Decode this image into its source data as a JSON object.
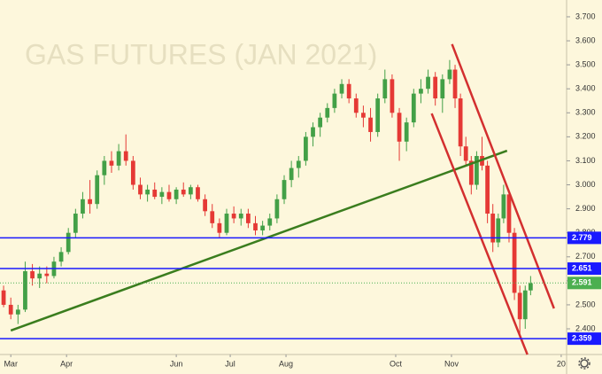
{
  "chart_data": {
    "type": "candlestick",
    "watermark": "GAS FUTURES (JAN 2021)",
    "x": [
      -4,
      0,
      4,
      8,
      12,
      16,
      20,
      24,
      28,
      32,
      36,
      40,
      44,
      48,
      52,
      56,
      60,
      64,
      68,
      72,
      76,
      80,
      84,
      88,
      92,
      96,
      100,
      104,
      108,
      112,
      116,
      120,
      124,
      128,
      132,
      136,
      140,
      144,
      148,
      152,
      156,
      160,
      164,
      168,
      172,
      176,
      180,
      184,
      188,
      192,
      196,
      200,
      204,
      208,
      212,
      216,
      220,
      224,
      228,
      232,
      236,
      240,
      244,
      247,
      250,
      253,
      256,
      259,
      262,
      265,
      268,
      271,
      274,
      277,
      280,
      283,
      286,
      289
    ],
    "open": [
      2.56,
      2.5,
      2.46,
      2.48,
      2.64,
      2.61,
      2.63,
      2.62,
      2.68,
      2.72,
      2.8,
      2.88,
      2.94,
      2.92,
      3.04,
      3.1,
      3.08,
      3.14,
      3.1,
      3.0,
      2.96,
      2.98,
      2.95,
      2.97,
      2.94,
      2.98,
      2.96,
      2.99,
      2.94,
      2.89,
      2.84,
      2.8,
      2.88,
      2.86,
      2.88,
      2.84,
      2.81,
      2.83,
      2.86,
      2.94,
      3.02,
      3.07,
      3.1,
      3.2,
      3.24,
      3.28,
      3.32,
      3.38,
      3.42,
      3.36,
      3.3,
      3.28,
      3.22,
      3.36,
      3.44,
      3.3,
      3.18,
      3.26,
      3.38,
      3.4,
      3.45,
      3.36,
      3.44,
      3.48,
      3.36,
      3.16,
      3.1,
      3.0,
      3.12,
      3.08,
      2.88,
      2.76,
      2.86,
      2.96,
      2.8,
      2.55,
      2.44,
      2.56
    ],
    "high": [
      2.58,
      2.53,
      2.5,
      2.68,
      2.67,
      2.66,
      2.66,
      2.7,
      2.74,
      2.82,
      2.9,
      2.97,
      3.02,
      3.06,
      3.12,
      3.14,
      3.17,
      3.21,
      3.12,
      3.03,
      3.0,
      3.01,
      2.99,
      3.0,
      2.99,
      3.01,
      3.0,
      3.0,
      2.96,
      2.92,
      2.86,
      2.9,
      2.91,
      2.9,
      2.9,
      2.87,
      2.85,
      2.88,
      2.96,
      3.04,
      3.1,
      3.12,
      3.22,
      3.26,
      3.3,
      3.34,
      3.4,
      3.44,
      3.44,
      3.38,
      3.33,
      3.32,
      3.38,
      3.48,
      3.46,
      3.32,
      3.28,
      3.4,
      3.44,
      3.48,
      3.47,
      3.46,
      3.52,
      3.5,
      3.38,
      3.2,
      3.12,
      3.14,
      3.2,
      3.1,
      2.92,
      2.88,
      3.0,
      2.98,
      2.82,
      2.58,
      2.58,
      2.62
    ],
    "low": [
      2.49,
      2.44,
      2.42,
      2.47,
      2.58,
      2.57,
      2.59,
      2.61,
      2.66,
      2.71,
      2.78,
      2.86,
      2.88,
      2.9,
      3.0,
      3.05,
      3.06,
      3.08,
      2.98,
      2.94,
      2.93,
      2.94,
      2.92,
      2.93,
      2.92,
      2.95,
      2.94,
      2.93,
      2.87,
      2.82,
      2.78,
      2.79,
      2.84,
      2.83,
      2.82,
      2.79,
      2.79,
      2.81,
      2.84,
      2.92,
      2.99,
      3.03,
      3.08,
      3.16,
      3.2,
      3.26,
      3.3,
      3.36,
      3.34,
      3.28,
      3.24,
      3.18,
      3.2,
      3.34,
      3.28,
      3.1,
      3.14,
      3.24,
      3.34,
      3.38,
      3.33,
      3.3,
      3.42,
      3.32,
      3.12,
      3.08,
      2.96,
      2.98,
      3.06,
      2.84,
      2.72,
      2.74,
      2.84,
      2.76,
      2.52,
      2.38,
      2.4,
      2.54
    ],
    "close": [
      2.5,
      2.46,
      2.48,
      2.64,
      2.61,
      2.63,
      2.62,
      2.68,
      2.72,
      2.8,
      2.88,
      2.94,
      2.92,
      3.04,
      3.1,
      3.08,
      3.14,
      3.1,
      3.0,
      2.96,
      2.98,
      2.95,
      2.97,
      2.94,
      2.98,
      2.96,
      2.99,
      2.94,
      2.89,
      2.84,
      2.8,
      2.88,
      2.86,
      2.88,
      2.84,
      2.81,
      2.83,
      2.86,
      2.94,
      3.02,
      3.07,
      3.1,
      3.2,
      3.24,
      3.28,
      3.32,
      3.38,
      3.42,
      3.36,
      3.3,
      3.28,
      3.22,
      3.36,
      3.44,
      3.3,
      3.18,
      3.26,
      3.38,
      3.4,
      3.45,
      3.36,
      3.44,
      3.48,
      3.36,
      3.16,
      3.1,
      3.0,
      3.12,
      3.08,
      2.88,
      2.76,
      2.86,
      2.96,
      2.8,
      2.55,
      2.44,
      2.56,
      2.59
    ],
    "up_color": "#43a047",
    "down_color": "#e53935",
    "xlim": [
      -6,
      309
    ],
    "xticks": [
      {
        "value": 0,
        "label": "Mar"
      },
      {
        "value": 31,
        "label": "Apr"
      },
      {
        "value": 92,
        "label": "Jun"
      },
      {
        "value": 122,
        "label": "Jul"
      },
      {
        "value": 153,
        "label": "Aug"
      },
      {
        "value": 214,
        "label": "Oct"
      },
      {
        "value": 245,
        "label": "Nov"
      },
      {
        "value": 306,
        "label": "20"
      }
    ],
    "ylim": [
      2.293,
      3.77
    ],
    "yticks": [
      {
        "value": 2.4,
        "label": "2.400"
      },
      {
        "value": 2.5,
        "label": "2.500"
      },
      {
        "value": 2.6,
        "label": "2.600"
      },
      {
        "value": 2.7,
        "label": "2.700"
      },
      {
        "value": 2.8,
        "label": "2.800"
      },
      {
        "value": 2.9,
        "label": "2.900"
      },
      {
        "value": 3.0,
        "label": "3.000"
      },
      {
        "value": 3.1,
        "label": "3.100"
      },
      {
        "value": 3.2,
        "label": "3.200"
      },
      {
        "value": 3.3,
        "label": "3.300"
      },
      {
        "value": 3.4,
        "label": "3.400"
      },
      {
        "value": 3.5,
        "label": "3.500"
      },
      {
        "value": 3.6,
        "label": "3.600"
      },
      {
        "value": 3.7,
        "label": "3.700"
      }
    ],
    "levels": [
      {
        "value": 2.779,
        "color": "#1a1aff"
      },
      {
        "value": 2.651,
        "color": "#1a1aff"
      },
      {
        "value": 2.359,
        "color": "#1a1aff"
      }
    ],
    "last_price": {
      "value": 2.591,
      "color": "#4caf50"
    },
    "trendlines": [
      {
        "color": "#3a7d1e",
        "x": [
          0,
          275.9
        ],
        "y": [
          2.393,
          3.142
        ]
      },
      {
        "color": "#d32f2f",
        "x": [
          245.3,
          302
        ],
        "y": [
          3.586,
          2.485
        ]
      },
      {
        "color": "#d32f2f",
        "x": [
          234,
          287.2
        ],
        "y": [
          3.297,
          2.293
        ]
      }
    ]
  }
}
